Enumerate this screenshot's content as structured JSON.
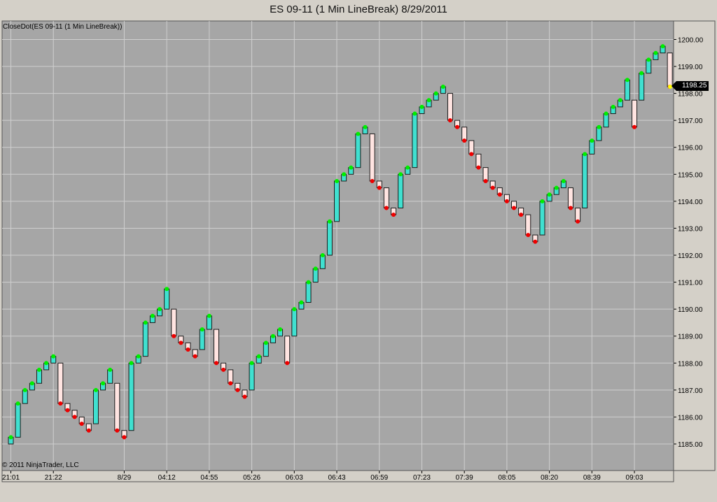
{
  "window": {
    "title": "ES 09-11 (1 Min LineBreak)  8/29/2011"
  },
  "chart_data": {
    "type": "line-break",
    "indicator_label": "CloseDot(ES 09-11 (1 Min LineBreak))",
    "copyright": "© 2011 NinjaTrader, LLC",
    "last_price": "1198.25",
    "ylim": [
      1184.5,
      1200.25
    ],
    "y_ticks": [
      "1185.00",
      "1186.00",
      "1187.00",
      "1188.00",
      "1189.00",
      "1190.00",
      "1191.00",
      "1192.00",
      "1193.00",
      "1194.00",
      "1195.00",
      "1196.00",
      "1197.00",
      "1198.00",
      "1199.00",
      "1200.00"
    ],
    "x_ticks": [
      {
        "label": "21:01",
        "index": 0
      },
      {
        "label": "21:22",
        "index": 6
      },
      {
        "label": "8/29",
        "index": 16
      },
      {
        "label": "04:12",
        "index": 22
      },
      {
        "label": "04:55",
        "index": 28
      },
      {
        "label": "05:26",
        "index": 34
      },
      {
        "label": "06:03",
        "index": 40
      },
      {
        "label": "06:43",
        "index": 46
      },
      {
        "label": "06:59",
        "index": 52
      },
      {
        "label": "07:23",
        "index": 58
      },
      {
        "label": "07:39",
        "index": 64
      },
      {
        "label": "08:05",
        "index": 70
      },
      {
        "label": "08:20",
        "index": 76
      },
      {
        "label": "08:39",
        "index": 82
      },
      {
        "label": "09:03",
        "index": 88
      }
    ],
    "closes": [
      1185.25,
      1186.5,
      1187.0,
      1187.25,
      1187.75,
      1188.0,
      1188.25,
      1186.5,
      1186.25,
      1186.0,
      1185.75,
      1185.5,
      1187.0,
      1187.25,
      1187.75,
      1185.5,
      1185.25,
      1188.0,
      1188.25,
      1189.5,
      1189.75,
      1190.0,
      1190.75,
      1189.0,
      1188.75,
      1188.5,
      1188.25,
      1189.25,
      1189.75,
      1188.0,
      1187.75,
      1187.25,
      1187.0,
      1186.75,
      1188.0,
      1188.25,
      1188.75,
      1189.0,
      1189.25,
      1188.0,
      1190.0,
      1190.25,
      1191.0,
      1191.5,
      1192.0,
      1193.25,
      1194.75,
      1195.0,
      1195.25,
      1196.5,
      1196.75,
      1194.75,
      1194.5,
      1193.75,
      1193.5,
      1195.0,
      1195.25,
      1197.25,
      1197.5,
      1197.75,
      1198.0,
      1198.25,
      1197.0,
      1196.75,
      1196.25,
      1195.75,
      1195.25,
      1194.75,
      1194.5,
      1194.25,
      1194.0,
      1193.75,
      1193.5,
      1192.75,
      1192.5,
      1194.0,
      1194.25,
      1194.5,
      1194.75,
      1193.75,
      1193.25,
      1195.75,
      1196.25,
      1196.75,
      1197.25,
      1197.5,
      1197.75,
      1198.5,
      1196.75,
      1198.75,
      1199.25,
      1199.5,
      1199.75,
      1198.25
    ],
    "opens": [
      1185.0,
      1185.25,
      1186.5,
      1187.0,
      1187.25,
      1187.75,
      1188.0,
      1188.0,
      1186.5,
      1186.25,
      1186.0,
      1185.75,
      1185.75,
      1187.0,
      1187.25,
      1187.25,
      1185.5,
      1185.5,
      1188.0,
      1188.25,
      1189.5,
      1189.75,
      1190.0,
      1190.0,
      1189.0,
      1188.75,
      1188.5,
      1188.5,
      1189.25,
      1189.25,
      1188.0,
      1187.75,
      1187.25,
      1187.0,
      1187.0,
      1188.0,
      1188.25,
      1188.75,
      1189.0,
      1189.0,
      1189.0,
      1190.0,
      1190.25,
      1191.0,
      1191.5,
      1192.0,
      1193.25,
      1194.75,
      1195.0,
      1195.25,
      1196.5,
      1196.5,
      1194.75,
      1194.5,
      1193.75,
      1193.75,
      1195.0,
      1195.25,
      1197.25,
      1197.5,
      1197.75,
      1198.0,
      1198.0,
      1197.0,
      1196.75,
      1196.25,
      1195.75,
      1195.25,
      1194.75,
      1194.5,
      1194.25,
      1194.0,
      1193.75,
      1193.5,
      1192.75,
      1192.75,
      1194.0,
      1194.25,
      1194.5,
      1194.5,
      1193.75,
      1193.75,
      1195.75,
      1196.25,
      1196.75,
      1197.25,
      1197.5,
      1197.75,
      1197.75,
      1197.75,
      1198.75,
      1199.25,
      1199.5,
      1199.5
    ],
    "colors": {
      "panel_bg": "#a6a6a6",
      "grid": "#cfcfcf",
      "up_fill": "#40e0d0",
      "down_fill": "#ffe4e1",
      "up_dot": "#00ee00",
      "down_dot": "#ee0000",
      "last_dot": "#ffff00",
      "outline": "#1a1a1a"
    }
  }
}
